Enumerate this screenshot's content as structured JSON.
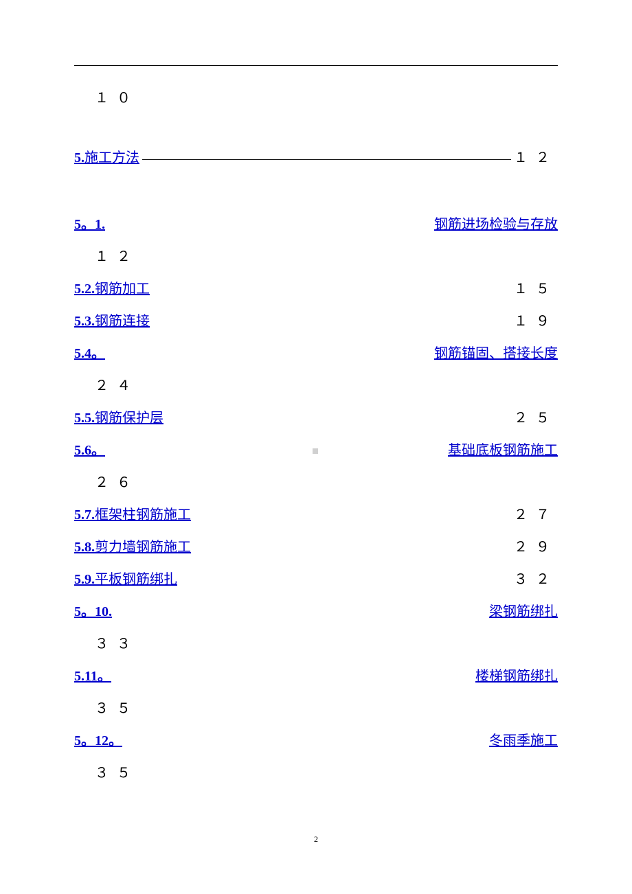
{
  "orphan_page": "１０",
  "main_section": {
    "num": "5.",
    "text": " 施工方法",
    "page": "１２"
  },
  "subsections": [
    {
      "num": "5。1.",
      "text": "",
      "right_text": "钢筋进场检验与存放",
      "page_below": "１２",
      "type": "split"
    },
    {
      "num": "5.2.",
      "text": " 钢筋加工",
      "page": "１５",
      "type": "inline"
    },
    {
      "num": "5.3.",
      "text": " 钢筋连接",
      "page": "１９",
      "type": "inline"
    },
    {
      "num": "5.4。",
      "text": "",
      "right_text": "钢筋锚固、搭接长度",
      "page_below": "２４",
      "type": "split"
    },
    {
      "num": "5.5.",
      "text": " 钢筋保护层",
      "page": "２５",
      "type": "inline"
    },
    {
      "num": "5.6。",
      "text": "",
      "right_text": "基础底板钢筋施工",
      "page_below": "２６",
      "type": "split"
    },
    {
      "num": "5.7.",
      "text": " 框架柱钢筋施工",
      "page": "２７",
      "type": "inline"
    },
    {
      "num": "5.8.",
      "text": " 剪力墙钢筋施工",
      "page": "２９",
      "type": "inline"
    },
    {
      "num": "5.9.",
      "text": " 平板钢筋绑扎",
      "page": "３２",
      "type": "inline"
    },
    {
      "num": "5。10.",
      "text": "",
      "right_text": "梁钢筋绑扎",
      "page_below": "３３",
      "type": "split"
    },
    {
      "num": "5.11。",
      "text": "",
      "right_text": "楼梯钢筋绑扎",
      "page_below": "３５",
      "type": "split"
    },
    {
      "num": "5。12。",
      "text": "",
      "right_text": "冬雨季施工",
      "page_below": "３５",
      "type": "split"
    }
  ],
  "footer_page": "2",
  "colors": {
    "link": "#0000cc",
    "text": "#000000",
    "background": "#ffffff"
  }
}
